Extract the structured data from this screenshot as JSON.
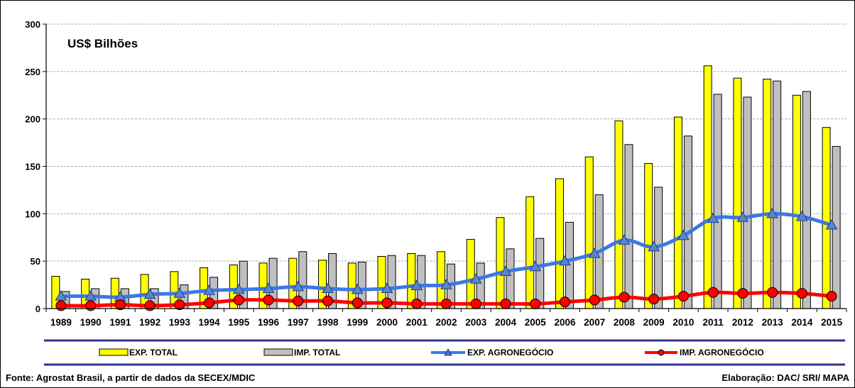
{
  "chart_data": {
    "type": "bar",
    "unit_label": "US$ Bilhões",
    "categories": [
      "1989",
      "1990",
      "1991",
      "1992",
      "1993",
      "1994",
      "1995",
      "1996",
      "1997",
      "1998",
      "1999",
      "2000",
      "2001",
      "2002",
      "2003",
      "2004",
      "2005",
      "2006",
      "2007",
      "2008",
      "2009",
      "2010",
      "2011",
      "2012",
      "2013",
      "2014",
      "2015"
    ],
    "ylim": [
      0,
      300
    ],
    "yticks": [
      "0",
      "50",
      "100",
      "150",
      "200",
      "250",
      "300"
    ],
    "grid": true,
    "legend_position": "bottom",
    "series": [
      {
        "name": "EXP. TOTAL",
        "kind": "bar",
        "color": "#FFFF00",
        "values": [
          34,
          31,
          32,
          36,
          39,
          43,
          46,
          48,
          53,
          51,
          48,
          55,
          58,
          60,
          73,
          96,
          118,
          137,
          160,
          198,
          153,
          202,
          256,
          243,
          242,
          225,
          191
        ]
      },
      {
        "name": "IMP. TOTAL",
        "kind": "bar",
        "color": "#BFBFBF",
        "values": [
          18,
          21,
          21,
          21,
          25,
          33,
          50,
          53,
          60,
          58,
          49,
          56,
          56,
          47,
          48,
          63,
          74,
          91,
          120,
          173,
          128,
          182,
          226,
          223,
          240,
          229,
          171
        ]
      },
      {
        "name": "EXP. AGRONEGÓCIO",
        "kind": "line",
        "marker": "triangle",
        "color": "#3C78E6",
        "values": [
          13,
          13,
          12,
          15,
          16,
          19,
          20,
          21,
          23,
          21,
          20,
          21,
          24,
          25,
          31,
          39,
          44,
          50,
          58,
          72,
          65,
          77,
          95,
          96,
          100,
          97,
          88
        ]
      },
      {
        "name": "IMP. AGRONEGÓCIO",
        "kind": "line",
        "marker": "circle",
        "color": "#FF0000",
        "values": [
          3,
          3,
          4,
          3,
          4,
          6,
          9,
          9,
          8,
          8,
          6,
          6,
          5,
          5,
          5,
          5,
          5,
          7,
          9,
          12,
          10,
          13,
          17,
          16,
          17,
          16,
          13
        ]
      }
    ]
  },
  "footer": {
    "source": "Fonte: Agrostat Brasil, a partir de dados da SECEX/MDIC",
    "credit": "Elaboração: DAC/ SRI/ MAPA"
  }
}
